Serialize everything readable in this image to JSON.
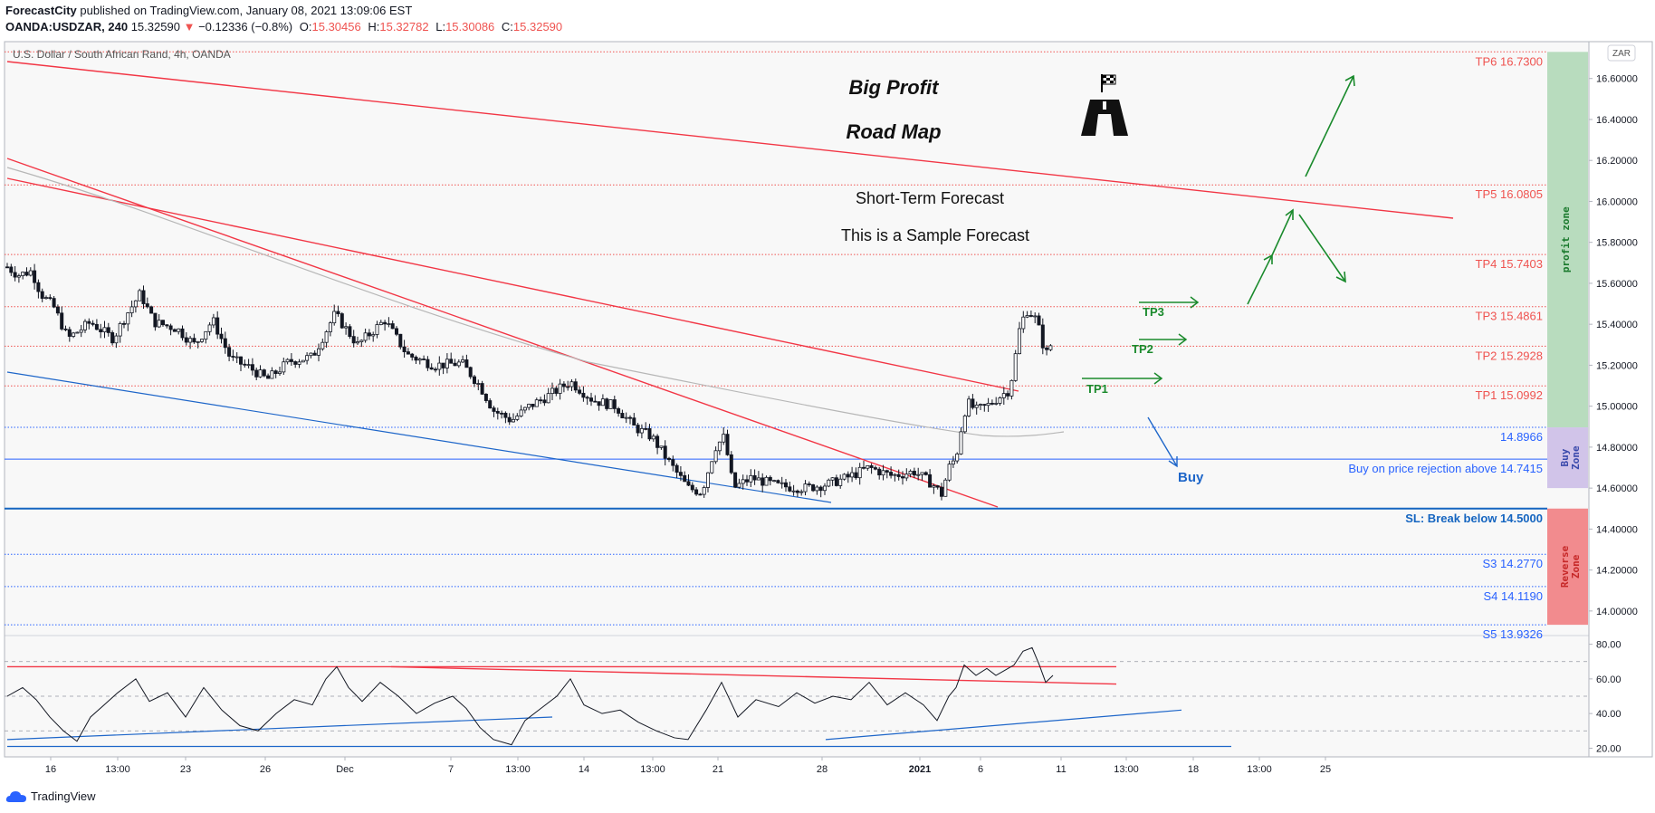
{
  "header": {
    "publisher": "ForecastCity",
    "published_text": "published on TradingView.com, January 08, 2021 13:09:06 EST",
    "symbol": "OANDA:USDZAR, 240",
    "last": "15.32590",
    "change": "−0.12336 (−0.8%)",
    "o_label": "O:",
    "o_value": "15.30456",
    "h_label": "H:",
    "h_value": "15.32782",
    "l_label": "L:",
    "l_value": "15.30086",
    "c_label": "C:",
    "c_value": "15.32590"
  },
  "footer": {
    "brand": "TradingView"
  },
  "chart_data": [
    {
      "type": "candlestick",
      "title": "U.S. Dollar / South African Rand, 4h, OANDA",
      "currency_badge": "ZAR",
      "ylim": [
        13.88,
        16.78
      ],
      "y_ticks": [
        "16.60000",
        "16.40000",
        "16.20000",
        "16.00000",
        "15.80000",
        "15.60000",
        "15.40000",
        "15.20000",
        "15.00000",
        "14.80000",
        "14.60000",
        "14.40000",
        "14.20000",
        "14.00000"
      ],
      "y_tick_values": [
        16.6,
        16.4,
        16.2,
        16.0,
        15.8,
        15.6,
        15.4,
        15.2,
        15.0,
        14.8,
        14.6,
        14.4,
        14.2,
        14.0
      ],
      "x_ticks": [
        "16",
        "13:00",
        "23",
        "26",
        "Dec",
        "7",
        "13:00",
        "14",
        "13:00",
        "21",
        "28",
        "2021",
        "6",
        "11",
        "13:00",
        "18",
        "13:00",
        "25"
      ],
      "x_tick_index": [
        56,
        130,
        205,
        293,
        381,
        498,
        572,
        645,
        721,
        793,
        908,
        1016,
        1083,
        1172,
        1244,
        1318,
        1391,
        1464
      ],
      "annotations": {
        "title1": "Big Profit",
        "title2": "Road Map",
        "subtitle1": "Short-Term Forecast",
        "subtitle2": "This is a Sample Forecast",
        "buy": "Buy",
        "tp1": "TP1",
        "tp2": "TP2",
        "tp3": "TP3"
      },
      "levels": [
        {
          "label": "TP6 16.7300",
          "value": 16.73,
          "color": "#ef5350"
        },
        {
          "label": "TP5 16.0805",
          "value": 16.0805,
          "color": "#ef5350"
        },
        {
          "label": "TP4 15.7403",
          "value": 15.7403,
          "color": "#ef5350"
        },
        {
          "label": "TP3 15.4861",
          "value": 15.4861,
          "color": "#ef5350"
        },
        {
          "label": "TP2 15.2928",
          "value": 15.2928,
          "color": "#ef5350"
        },
        {
          "label": "TP1 15.0992",
          "value": 15.0992,
          "color": "#ef5350"
        },
        {
          "label": "14.8966",
          "value": 14.8966,
          "color": "#2962ff"
        },
        {
          "label": "Buy on price rejection above 14.7415",
          "value": 14.7415,
          "color": "#2962ff"
        },
        {
          "label": "SL: Break below 14.5000",
          "value": 14.5,
          "color": "#1565c0"
        },
        {
          "label": "S3 14.2770",
          "value": 14.277,
          "color": "#2962ff"
        },
        {
          "label": "S4 14.1190",
          "value": 14.119,
          "color": "#2962ff"
        },
        {
          "label": "S5 13.9326",
          "value": 13.9326,
          "color": "#2962ff"
        }
      ],
      "zones": [
        {
          "label": "profit zone",
          "from": 14.8966,
          "to": 16.73,
          "color": "#b8dcbe",
          "text_color": "#1b7a2e"
        },
        {
          "label": "Buy Zone",
          "from": 14.6,
          "to": 14.8966,
          "color": "#d1c4e9",
          "text_color": "#3949ab"
        },
        {
          "label": "Reverse Zone",
          "from": 13.9326,
          "to": 14.5,
          "color": "#f28b8e",
          "text_color": "#c62828"
        }
      ],
      "price_path": [
        {
          "x": 8,
          "y": 15.68
        },
        {
          "x": 20,
          "y": 15.64
        },
        {
          "x": 35,
          "y": 15.66
        },
        {
          "x": 45,
          "y": 15.55
        },
        {
          "x": 60,
          "y": 15.48
        },
        {
          "x": 75,
          "y": 15.33
        },
        {
          "x": 100,
          "y": 15.41
        },
        {
          "x": 125,
          "y": 15.33
        },
        {
          "x": 140,
          "y": 15.45
        },
        {
          "x": 155,
          "y": 15.55
        },
        {
          "x": 170,
          "y": 15.41
        },
        {
          "x": 195,
          "y": 15.38
        },
        {
          "x": 215,
          "y": 15.3
        },
        {
          "x": 235,
          "y": 15.42
        },
        {
          "x": 255,
          "y": 15.23
        },
        {
          "x": 275,
          "y": 15.19
        },
        {
          "x": 295,
          "y": 15.13
        },
        {
          "x": 320,
          "y": 15.22
        },
        {
          "x": 345,
          "y": 15.24
        },
        {
          "x": 370,
          "y": 15.45
        },
        {
          "x": 395,
          "y": 15.3
        },
        {
          "x": 425,
          "y": 15.42
        },
        {
          "x": 450,
          "y": 15.25
        },
        {
          "x": 480,
          "y": 15.2
        },
        {
          "x": 510,
          "y": 15.21
        },
        {
          "x": 530,
          "y": 15.1
        },
        {
          "x": 545,
          "y": 14.98
        },
        {
          "x": 565,
          "y": 14.93
        },
        {
          "x": 585,
          "y": 15.0
        },
        {
          "x": 605,
          "y": 15.05
        },
        {
          "x": 630,
          "y": 15.12
        },
        {
          "x": 655,
          "y": 15.03
        },
        {
          "x": 680,
          "y": 15.0
        },
        {
          "x": 700,
          "y": 14.9
        },
        {
          "x": 720,
          "y": 14.85
        },
        {
          "x": 740,
          "y": 14.72
        },
        {
          "x": 760,
          "y": 14.6
        },
        {
          "x": 775,
          "y": 14.58
        },
        {
          "x": 790,
          "y": 14.8
        },
        {
          "x": 800,
          "y": 14.85
        },
        {
          "x": 810,
          "y": 14.6
        },
        {
          "x": 830,
          "y": 14.65
        },
        {
          "x": 860,
          "y": 14.61
        },
        {
          "x": 890,
          "y": 14.6
        },
        {
          "x": 915,
          "y": 14.62
        },
        {
          "x": 935,
          "y": 14.65
        },
        {
          "x": 960,
          "y": 14.7
        },
        {
          "x": 985,
          "y": 14.66
        },
        {
          "x": 1010,
          "y": 14.68
        },
        {
          "x": 1030,
          "y": 14.62
        },
        {
          "x": 1040,
          "y": 14.57
        },
        {
          "x": 1048,
          "y": 14.7
        },
        {
          "x": 1056,
          "y": 14.75
        },
        {
          "x": 1062,
          "y": 14.9
        },
        {
          "x": 1068,
          "y": 15.02
        },
        {
          "x": 1078,
          "y": 14.98
        },
        {
          "x": 1090,
          "y": 15.0
        },
        {
          "x": 1105,
          "y": 15.05
        },
        {
          "x": 1115,
          "y": 15.08
        },
        {
          "x": 1120,
          "y": 15.2
        },
        {
          "x": 1127,
          "y": 15.4
        },
        {
          "x": 1135,
          "y": 15.47
        },
        {
          "x": 1145,
          "y": 15.42
        },
        {
          "x": 1155,
          "y": 15.25
        },
        {
          "x": 1163,
          "y": 15.32
        }
      ]
    },
    {
      "type": "line",
      "title": "",
      "ylim": [
        15,
        85
      ],
      "y_ticks": [
        "80.00",
        "60.00",
        "40.00",
        "20.00"
      ],
      "y_tick_values": [
        80,
        60,
        40,
        20
      ],
      "guides": [
        70,
        50,
        30
      ],
      "series": [
        {
          "values": [
            {
              "x": 8,
              "y": 50
            },
            {
              "x": 25,
              "y": 55
            },
            {
              "x": 40,
              "y": 48
            },
            {
              "x": 55,
              "y": 38
            },
            {
              "x": 70,
              "y": 30
            },
            {
              "x": 85,
              "y": 24
            },
            {
              "x": 100,
              "y": 38
            },
            {
              "x": 115,
              "y": 45
            },
            {
              "x": 130,
              "y": 52
            },
            {
              "x": 150,
              "y": 60
            },
            {
              "x": 165,
              "y": 47
            },
            {
              "x": 185,
              "y": 52
            },
            {
              "x": 205,
              "y": 38
            },
            {
              "x": 225,
              "y": 55
            },
            {
              "x": 245,
              "y": 42
            },
            {
              "x": 265,
              "y": 33
            },
            {
              "x": 285,
              "y": 30
            },
            {
              "x": 305,
              "y": 40
            },
            {
              "x": 325,
              "y": 48
            },
            {
              "x": 345,
              "y": 45
            },
            {
              "x": 360,
              "y": 60
            },
            {
              "x": 372,
              "y": 67
            },
            {
              "x": 385,
              "y": 55
            },
            {
              "x": 400,
              "y": 47
            },
            {
              "x": 420,
              "y": 58
            },
            {
              "x": 440,
              "y": 50
            },
            {
              "x": 460,
              "y": 40
            },
            {
              "x": 480,
              "y": 46
            },
            {
              "x": 500,
              "y": 50
            },
            {
              "x": 515,
              "y": 43
            },
            {
              "x": 530,
              "y": 32
            },
            {
              "x": 545,
              "y": 25
            },
            {
              "x": 565,
              "y": 22
            },
            {
              "x": 580,
              "y": 36
            },
            {
              "x": 600,
              "y": 44
            },
            {
              "x": 615,
              "y": 50
            },
            {
              "x": 630,
              "y": 60
            },
            {
              "x": 645,
              "y": 45
            },
            {
              "x": 665,
              "y": 40
            },
            {
              "x": 685,
              "y": 42
            },
            {
              "x": 705,
              "y": 35
            },
            {
              "x": 725,
              "y": 30
            },
            {
              "x": 745,
              "y": 26
            },
            {
              "x": 760,
              "y": 25
            },
            {
              "x": 780,
              "y": 42
            },
            {
              "x": 797,
              "y": 58
            },
            {
              "x": 815,
              "y": 38
            },
            {
              "x": 835,
              "y": 48
            },
            {
              "x": 860,
              "y": 44
            },
            {
              "x": 880,
              "y": 52
            },
            {
              "x": 900,
              "y": 46
            },
            {
              "x": 920,
              "y": 50
            },
            {
              "x": 940,
              "y": 48
            },
            {
              "x": 960,
              "y": 58
            },
            {
              "x": 980,
              "y": 45
            },
            {
              "x": 1000,
              "y": 52
            },
            {
              "x": 1020,
              "y": 45
            },
            {
              "x": 1035,
              "y": 36
            },
            {
              "x": 1048,
              "y": 50
            },
            {
              "x": 1056,
              "y": 55
            },
            {
              "x": 1065,
              "y": 68
            },
            {
              "x": 1078,
              "y": 62
            },
            {
              "x": 1090,
              "y": 66
            },
            {
              "x": 1100,
              "y": 62
            },
            {
              "x": 1110,
              "y": 65
            },
            {
              "x": 1120,
              "y": 68
            },
            {
              "x": 1130,
              "y": 76
            },
            {
              "x": 1140,
              "y": 78
            },
            {
              "x": 1148,
              "y": 68
            },
            {
              "x": 1155,
              "y": 58
            },
            {
              "x": 1163,
              "y": 62
            }
          ]
        }
      ]
    }
  ]
}
